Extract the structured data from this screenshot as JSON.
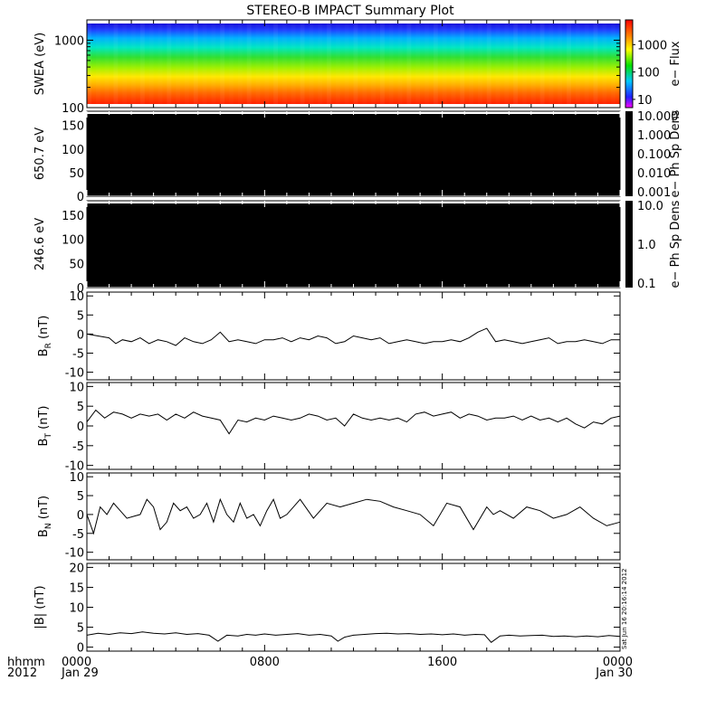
{
  "title": "STEREO-B IMPACT Summary Plot",
  "footer": {
    "row1_label": "hhmm",
    "row2_label": "2012",
    "ticks": [
      {
        "time": "0000",
        "date": "Jan 29",
        "t": 0
      },
      {
        "time": "0800",
        "date": "",
        "t": 8
      },
      {
        "time": "1600",
        "date": "",
        "t": 16
      },
      {
        "time": "0000",
        "date": "Jan 30",
        "t": 24
      }
    ]
  },
  "side_stamp": "Sat Jun 16 20:16:14 2012",
  "colors": {
    "black_panel": "#000000",
    "line": "#000000",
    "axis": "#000000"
  },
  "chart_data": [
    {
      "id": "swea",
      "type": "heatmap",
      "ylabel": "SWEA (eV)",
      "yscale": "log",
      "ylim": [
        100,
        2000
      ],
      "yticks": [
        100,
        1000
      ],
      "ytick_labels": [
        "100",
        "1000"
      ],
      "colorbar": {
        "label": "e− Flux",
        "scale": "log",
        "range": [
          5,
          8000
        ],
        "ticks": [
          10,
          100,
          1000
        ],
        "tick_labels": [
          "10",
          "100",
          "1000"
        ],
        "colormap": "rainbow"
      },
      "description_bands": [
        {
          "energy_eV": 100,
          "flux": 8000
        },
        {
          "energy_eV": 150,
          "flux": 3000
        },
        {
          "energy_eV": 250,
          "flux": 1500
        },
        {
          "energy_eV": 400,
          "flux": 500
        },
        {
          "energy_eV": 700,
          "flux": 150
        },
        {
          "energy_eV": 1100,
          "flux": 40
        },
        {
          "energy_eV": 1500,
          "flux": 10
        },
        {
          "energy_eV": 1900,
          "flux": 6
        }
      ]
    },
    {
      "id": "pad650",
      "type": "heatmap",
      "ylabel": "650.7 eV",
      "ylim": [
        0,
        180
      ],
      "yticks": [
        0,
        50,
        100,
        150
      ],
      "colorbar": {
        "label": "e− Ph Sp Dens",
        "scale": "log",
        "range": [
          0.001,
          10
        ],
        "tick_labels": [
          "10.000",
          "1.000",
          "0.100",
          "0.010",
          "0.001"
        ]
      },
      "fill": "none"
    },
    {
      "id": "pad246",
      "type": "heatmap",
      "ylabel": "246.6 eV",
      "ylim": [
        0,
        180
      ],
      "yticks": [
        0,
        50,
        100,
        150
      ],
      "colorbar": {
        "label": "e− Ph Sp Dens",
        "scale": "log",
        "range": [
          0.1,
          10
        ],
        "tick_labels": [
          "10.0",
          "1.0",
          "0.1"
        ]
      },
      "fill": "none"
    },
    {
      "id": "br",
      "type": "line",
      "ylabel_main": "B",
      "ylabel_sub": "R",
      "ylabel_unit": " (nT)",
      "ylim": [
        -12,
        11
      ],
      "yticks": [
        -10,
        -5,
        0,
        5,
        10
      ],
      "x_hours": [
        0,
        0.5,
        1,
        1.3,
        1.6,
        2,
        2.4,
        2.8,
        3.2,
        3.6,
        4,
        4.4,
        4.8,
        5.2,
        5.6,
        6,
        6.4,
        6.8,
        7.2,
        7.6,
        8,
        8.4,
        8.8,
        9.2,
        9.6,
        10,
        10.4,
        10.8,
        11.2,
        11.6,
        12,
        12.4,
        12.8,
        13.2,
        13.6,
        14,
        14.4,
        14.8,
        15.2,
        15.6,
        16,
        16.4,
        16.8,
        17.2,
        17.6,
        18,
        18.4,
        18.8,
        19.2,
        19.6,
        20,
        20.4,
        20.8,
        21.2,
        21.6,
        22,
        22.4,
        22.8,
        23.2,
        23.6,
        24
      ],
      "y": [
        0,
        -0.5,
        -1,
        -2.5,
        -1.5,
        -2,
        -1,
        -2.5,
        -1.5,
        -2,
        -3,
        -1,
        -2,
        -2.5,
        -1.5,
        0.5,
        -2,
        -1.5,
        -2,
        -2.5,
        -1.5,
        -1.5,
        -1,
        -2,
        -1,
        -1.5,
        -0.5,
        -1,
        -2.5,
        -2,
        -0.5,
        -1,
        -1.5,
        -1,
        -2.5,
        -2,
        -1.5,
        -2,
        -2.5,
        -2,
        -2,
        -1.5,
        -2,
        -1,
        0.5,
        1.5,
        -2,
        -1.5,
        -2,
        -2.5,
        -2,
        -1.5,
        -1,
        -2.5,
        -2,
        -2,
        -1.5,
        -2,
        -2.5,
        -1.5,
        -1.5
      ]
    },
    {
      "id": "bt",
      "type": "line",
      "ylabel_main": "B",
      "ylabel_sub": "T",
      "ylabel_unit": " (nT)",
      "ylim": [
        -11,
        11
      ],
      "yticks": [
        -10,
        -5,
        0,
        5,
        10
      ],
      "x_hours": [
        0,
        0.4,
        0.8,
        1.2,
        1.6,
        2,
        2.4,
        2.8,
        3.2,
        3.6,
        4,
        4.4,
        4.8,
        5.2,
        5.6,
        6,
        6.4,
        6.8,
        7.2,
        7.6,
        8,
        8.4,
        8.8,
        9.2,
        9.6,
        10,
        10.4,
        10.8,
        11.2,
        11.6,
        12,
        12.4,
        12.8,
        13.2,
        13.6,
        14,
        14.4,
        14.8,
        15.2,
        15.6,
        16,
        16.4,
        16.8,
        17.2,
        17.6,
        18,
        18.4,
        18.8,
        19.2,
        19.6,
        20,
        20.4,
        20.8,
        21.2,
        21.6,
        22,
        22.4,
        22.8,
        23.2,
        23.6,
        24
      ],
      "y": [
        1,
        4,
        2,
        3.5,
        3,
        2,
        3,
        2.5,
        3,
        1.5,
        3,
        2,
        3.5,
        2.5,
        2,
        1.5,
        -2,
        1.5,
        1,
        2,
        1.5,
        2.5,
        2,
        1.5,
        2,
        3,
        2.5,
        1.5,
        2,
        0,
        3,
        2,
        1.5,
        2,
        1.5,
        2,
        1,
        3,
        3.5,
        2.5,
        3,
        3.5,
        2,
        3,
        2.5,
        1.5,
        2,
        2,
        2.5,
        1.5,
        2.5,
        1.5,
        2,
        1,
        2,
        0.5,
        -0.5,
        1,
        0.5,
        2,
        2.5
      ]
    },
    {
      "id": "bn",
      "type": "line",
      "ylabel_main": "B",
      "ylabel_sub": "N",
      "ylabel_unit": " (nT)",
      "ylim": [
        -12,
        11
      ],
      "yticks": [
        -10,
        -5,
        0,
        5,
        10
      ],
      "x_hours": [
        0,
        0.3,
        0.6,
        0.9,
        1.2,
        1.5,
        1.8,
        2.1,
        2.4,
        2.7,
        3,
        3.3,
        3.6,
        3.9,
        4.2,
        4.5,
        4.8,
        5.1,
        5.4,
        5.7,
        6,
        6.3,
        6.6,
        6.9,
        7.2,
        7.5,
        7.8,
        8.1,
        8.4,
        8.7,
        9,
        9.6,
        10.2,
        10.8,
        11.4,
        12,
        12.6,
        13.2,
        13.8,
        14.4,
        15,
        15.6,
        16.2,
        16.8,
        17.4,
        18,
        18.3,
        18.6,
        19.2,
        19.8,
        20.4,
        21,
        21.6,
        22.2,
        22.8,
        23.4,
        24
      ],
      "y": [
        0,
        -5,
        2,
        0,
        3,
        1,
        -1,
        -0.5,
        0,
        4,
        2,
        -4,
        -2,
        3,
        1,
        2,
        -1,
        0,
        3,
        -2,
        4,
        0,
        -2,
        3,
        -1,
        0,
        -3,
        1,
        4,
        -1,
        0,
        4,
        -1,
        3,
        2,
        3,
        4,
        3.5,
        2,
        1,
        0,
        -3,
        3,
        2,
        -4,
        2,
        0,
        1,
        -1,
        2,
        1,
        -1,
        0,
        2,
        -1,
        -3,
        -2
      ]
    },
    {
      "id": "bmag",
      "type": "line",
      "ylabel": "|B| (nT)",
      "ylim": [
        -1,
        21
      ],
      "yticks": [
        0,
        5,
        10,
        15,
        20
      ],
      "x_hours": [
        0,
        0.5,
        1,
        1.5,
        2,
        2.5,
        3,
        3.5,
        4,
        4.5,
        5,
        5.5,
        5.9,
        6.3,
        6.8,
        7.2,
        7.6,
        8,
        8.5,
        9,
        9.5,
        10,
        10.5,
        11,
        11.3,
        11.6,
        12,
        12.5,
        13,
        13.5,
        14,
        14.5,
        15,
        15.5,
        16,
        16.5,
        17,
        17.5,
        17.9,
        18.2,
        18.6,
        19,
        19.5,
        20,
        20.5,
        21,
        21.5,
        22,
        22.5,
        23,
        23.5,
        24
      ],
      "y": [
        3,
        3.5,
        3.2,
        3.6,
        3.4,
        3.8,
        3.5,
        3.3,
        3.6,
        3.2,
        3.4,
        3,
        1.5,
        3,
        2.8,
        3.2,
        3,
        3.3,
        3,
        3.2,
        3.4,
        3,
        3.2,
        2.8,
        1.5,
        2.5,
        3,
        3.2,
        3.4,
        3.5,
        3.3,
        3.4,
        3.2,
        3.3,
        3.1,
        3.3,
        3,
        3.2,
        3.1,
        1.2,
        2.8,
        3,
        2.8,
        2.9,
        3,
        2.7,
        2.8,
        2.6,
        2.8,
        2.6,
        2.9,
        2.7
      ]
    }
  ]
}
